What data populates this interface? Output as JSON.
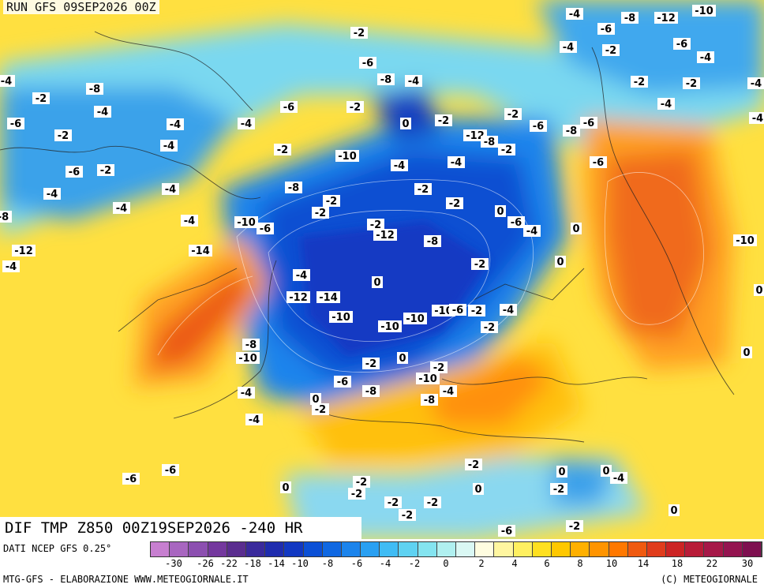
{
  "run_title": "RUN GFS 09SEP2026 00Z",
  "map_title": "DIF TMP Z850 00Z19SEP2026 -240 HR",
  "source": "DATI NCEP GFS 0.25°",
  "credit_left": "MTG-GFS - ELABORAZIONE WWW.METEOGIORNALE.IT",
  "credit_right": "(C) METEOGIORNALE",
  "legend": {
    "colors": [
      "#c77fd0",
      "#a866c0",
      "#8c4fb0",
      "#74389e",
      "#5a2d8f",
      "#3a2a9c",
      "#1f2cae",
      "#1238c2",
      "#0c50d6",
      "#1068e2",
      "#1c84ec",
      "#2aa0f2",
      "#40bcf4",
      "#5fd2f2",
      "#84e4f0",
      "#b0f0f0",
      "#daf8f4",
      "#fffde0",
      "#fff6a0",
      "#fff060",
      "#ffe020",
      "#ffc800",
      "#ffb000",
      "#ff9400",
      "#ff7800",
      "#f05a10",
      "#e03c1c",
      "#cc2424",
      "#b81c38",
      "#a61848",
      "#941450",
      "#7e1050"
    ],
    "tick_labels": [
      "-30",
      "-26",
      "-22",
      "-18",
      "-14",
      "-10",
      "-8",
      "-6",
      "-4",
      "-2",
      "0",
      "2",
      "4",
      "6",
      "8",
      "10",
      "14",
      "18",
      "22",
      "30"
    ]
  },
  "map_labels": [
    "-4",
    "-8",
    "-12",
    "-10",
    "-2",
    "-6",
    "-4",
    "-6",
    "-2",
    "-4",
    "-6",
    "-8",
    "-4",
    "-4",
    "-2",
    "-8",
    "-4",
    "-2",
    "-2",
    "-4",
    "-4",
    "-6",
    "-2",
    "-6",
    "-2",
    "-4",
    "-4",
    "0",
    "-2",
    "-2",
    "-6",
    "-8",
    "-6",
    "-4",
    "-2",
    "-10",
    "-12",
    "-8",
    "-2",
    "-4",
    "-4",
    "-6",
    "-2",
    "-6",
    "-4",
    "-4",
    "-4",
    "-4",
    "-8",
    "-2",
    "-2",
    "-2",
    "-2",
    "0",
    "-4",
    "-10",
    "-6",
    "-2",
    "-12",
    "-8",
    "-6",
    "-4",
    "0",
    "-8",
    "-12",
    "-14",
    "-4",
    "-2",
    "0",
    "-10",
    "-4",
    "0",
    "-12",
    "-14",
    "-10",
    "-10",
    "-10",
    "-10",
    "-6",
    "-2",
    "-4",
    "-2",
    "0",
    "-8",
    "-10",
    "-2",
    "0",
    "-2",
    "-10",
    "-8",
    "-6",
    "-4",
    "-4",
    "-8",
    "0",
    "-2",
    "-4",
    "0",
    "-6",
    "-6",
    "0",
    "-2",
    "-2",
    "-2",
    "0",
    "0",
    "0",
    "-4",
    "-2",
    "-2",
    "-2",
    "-2",
    "-6",
    "-2",
    "0"
  ],
  "colors": {
    "sea": "#3ea0e8",
    "cold_core": "#1238c2",
    "warm": "#ffd000",
    "hot": "#f07020"
  }
}
